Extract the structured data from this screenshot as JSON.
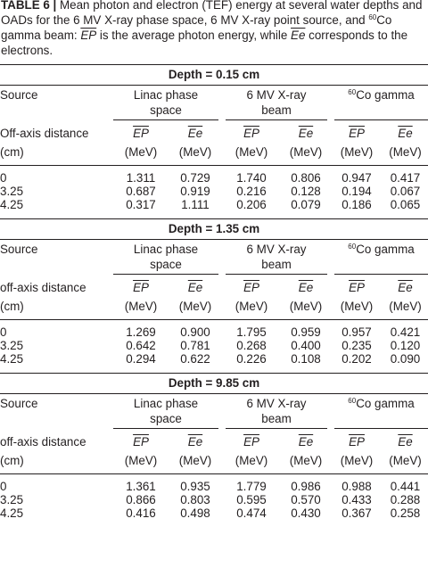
{
  "caption": {
    "label": "TABLE 6 |",
    "text_1": " Mean photon and electron (TEF) energy at several water depths and OADs for the 6 MV X-ray phase space, 6 MV X-ray point source, and ",
    "sup_60": "60",
    "text_2": "Co gamma beam: ",
    "ep_symbol": "EP",
    "text_3": " is the average photon energy, while ",
    "ee_symbol": "Ee",
    "text_4": " corresponds to the electrons."
  },
  "headers": {
    "source": "Source",
    "linac_1": "Linac phase",
    "linac_2": "space",
    "xray_1": "6 MV X-ray",
    "xray_2": "beam",
    "co_sup": "60",
    "co_text": "Co gamma",
    "ep": "EP",
    "ee": "Ee",
    "unit": "(MeV)",
    "cm": "(cm)"
  },
  "sections": [
    {
      "title": "Depth = 0.15 cm",
      "oad_label": "Off-axis distance",
      "rows": [
        {
          "oad": "0",
          "l_ep": "1.311",
          "l_ee": "0.729",
          "x_ep": "1.740",
          "x_ee": "0.806",
          "c_ep": "0.947",
          "c_ee": "0.417"
        },
        {
          "oad": "3.25",
          "l_ep": "0.687",
          "l_ee": "0.919",
          "x_ep": "0.216",
          "x_ee": "0.128",
          "c_ep": "0.194",
          "c_ee": "0.067"
        },
        {
          "oad": "4.25",
          "l_ep": "0.317",
          "l_ee": "1.111",
          "x_ep": "0.206",
          "x_ee": "0.079",
          "c_ep": "0.186",
          "c_ee": "0.065"
        }
      ]
    },
    {
      "title": "Depth = 1.35 cm",
      "oad_label": "off-axis distance",
      "rows": [
        {
          "oad": "0",
          "l_ep": "1.269",
          "l_ee": "0.900",
          "x_ep": "1.795",
          "x_ee": "0.959",
          "c_ep": "0.957",
          "c_ee": "0.421"
        },
        {
          "oad": "3.25",
          "l_ep": "0.642",
          "l_ee": "0.781",
          "x_ep": "0.268",
          "x_ee": "0.400",
          "c_ep": "0.235",
          "c_ee": "0.120"
        },
        {
          "oad": "4.25",
          "l_ep": "0.294",
          "l_ee": "0.622",
          "x_ep": "0.226",
          "x_ee": "0.108",
          "c_ep": "0.202",
          "c_ee": "0.090"
        }
      ]
    },
    {
      "title": "Depth = 9.85 cm",
      "oad_label": "off-axis distance",
      "rows": [
        {
          "oad": "0",
          "l_ep": "1.361",
          "l_ee": "0.935",
          "x_ep": "1.779",
          "x_ee": "0.986",
          "c_ep": "0.988",
          "c_ee": "0.441"
        },
        {
          "oad": "3.25",
          "l_ep": "0.866",
          "l_ee": "0.803",
          "x_ep": "0.595",
          "x_ee": "0.570",
          "c_ep": "0.433",
          "c_ee": "0.288"
        },
        {
          "oad": "4.25",
          "l_ep": "0.416",
          "l_ee": "0.498",
          "x_ep": "0.474",
          "x_ee": "0.430",
          "c_ep": "0.367",
          "c_ee": "0.258"
        }
      ]
    }
  ]
}
